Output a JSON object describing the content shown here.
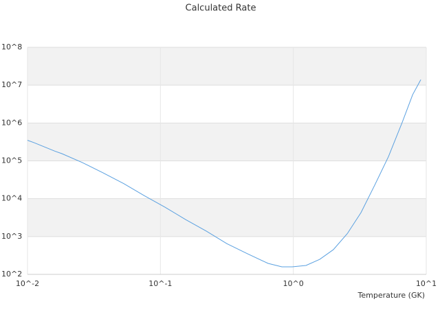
{
  "chart_data": {
    "type": "line",
    "title": "Calculated Rate",
    "x_label": "Temperature (GK)",
    "x": [
      0.01,
      0.01127,
      0.0161,
      0.01815,
      0.0259,
      0.0371,
      0.053,
      0.0757,
      0.108,
      0.155,
      0.221,
      0.316,
      0.452,
      0.646,
      0.82,
      0.98,
      1.245,
      1.58,
      2.0,
      2.55,
      3.23,
      4.1,
      5.2,
      6.6,
      7.9,
      9.1
    ],
    "series": [
      {
        "name": "Calculated Rate",
        "color": "#5aa0e0",
        "values": [
          350000,
          300000,
          180000,
          155000,
          90000,
          48000,
          25000,
          12000,
          6000,
          2800,
          1400,
          650,
          350,
          195,
          158,
          158,
          172,
          250,
          450,
          1200,
          4300,
          23000,
          130000,
          1050000,
          5600000,
          14000000
        ]
      }
    ],
    "xlog": true,
    "ylog": true,
    "xlim": [
      0.01,
      10
    ],
    "ylim": [
      100,
      100000000
    ],
    "xticks": [
      {
        "value": 0.01,
        "label": "10^-2"
      },
      {
        "value": 0.1,
        "label": "10^-1"
      },
      {
        "value": 1,
        "label": "10^0"
      },
      {
        "value": 10,
        "label": "10^1"
      }
    ],
    "yticks": [
      {
        "value": 100,
        "label": "10^2"
      },
      {
        "value": 1000,
        "label": "10^3"
      },
      {
        "value": 10000,
        "label": "10^4"
      },
      {
        "value": 100000,
        "label": "10^5"
      },
      {
        "value": 1000000,
        "label": "10^6"
      },
      {
        "value": 10000000,
        "label": "10^7"
      },
      {
        "value": 100000000,
        "label": "10^8"
      }
    ],
    "grid": true,
    "band_color": "#f2f2f2"
  }
}
